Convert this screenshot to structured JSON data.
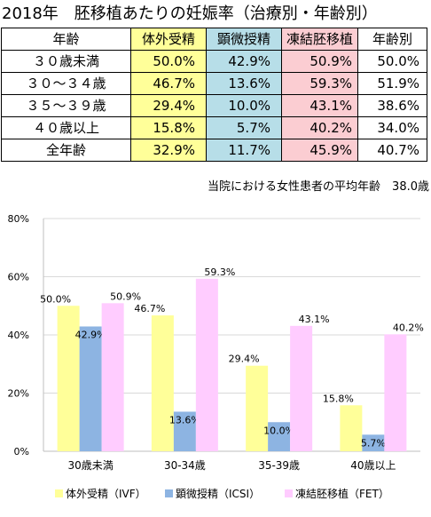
{
  "title": "2018年　胚移植あたりの妊娠率（治療別・年齢別）",
  "table": {
    "headers": [
      "年齢",
      "体外受精",
      "顕微授精",
      "凍結胚移植",
      "年齢別"
    ],
    "rows": [
      [
        "３０歳未満",
        "50.0%",
        "42.9%",
        "50.9%",
        "50.0%"
      ],
      [
        "３０～３４歳",
        "46.7%",
        "13.6%",
        "59.3%",
        "51.9%"
      ],
      [
        "３５～３９歳",
        "29.4%",
        "10.0%",
        "43.1%",
        "38.6%"
      ],
      [
        "４０歳以上",
        "15.8%",
        "5.7%",
        "40.2%",
        "34.0%"
      ],
      [
        "全年齢",
        "32.9%",
        "11.7%",
        "45.9%",
        "40.7%"
      ]
    ]
  },
  "avg_note": "当院における女性患者の平均年齢　38.0歳",
  "colors": {
    "ivf_table": "#ffff99",
    "icsi_table": "#b7dee8",
    "fet_table": "#fbcdd2",
    "ivf_bar": "#ffff99",
    "icsi_bar": "#8db4e2",
    "fet_bar": "#ffccff",
    "grid": "#d9d9d9"
  },
  "chart_data": {
    "type": "bar",
    "categories": [
      "30歳未満",
      "30-34歳",
      "35-39歳",
      "40歳以上"
    ],
    "series": [
      {
        "name": "体外受精（IVF）",
        "values": [
          50.0,
          46.7,
          29.4,
          15.8
        ],
        "labels": [
          "50.0%",
          "46.7%",
          "29.4%",
          "15.8%"
        ]
      },
      {
        "name": "顕微授精（ICSI）",
        "values": [
          42.9,
          13.6,
          10.0,
          5.7
        ],
        "labels": [
          "42.9%",
          "13.6%",
          "10.0%",
          "5.7%"
        ]
      },
      {
        "name": "凍結胚移植（FET）",
        "values": [
          50.9,
          59.3,
          43.1,
          40.2
        ],
        "labels": [
          "50.9%",
          "59.3%",
          "43.1%",
          "40.2%"
        ]
      }
    ],
    "yticks": [
      "0%",
      "20%",
      "40%",
      "60%",
      "80%"
    ],
    "ylim": [
      0,
      80
    ],
    "grid": true,
    "legend_position": "bottom"
  }
}
